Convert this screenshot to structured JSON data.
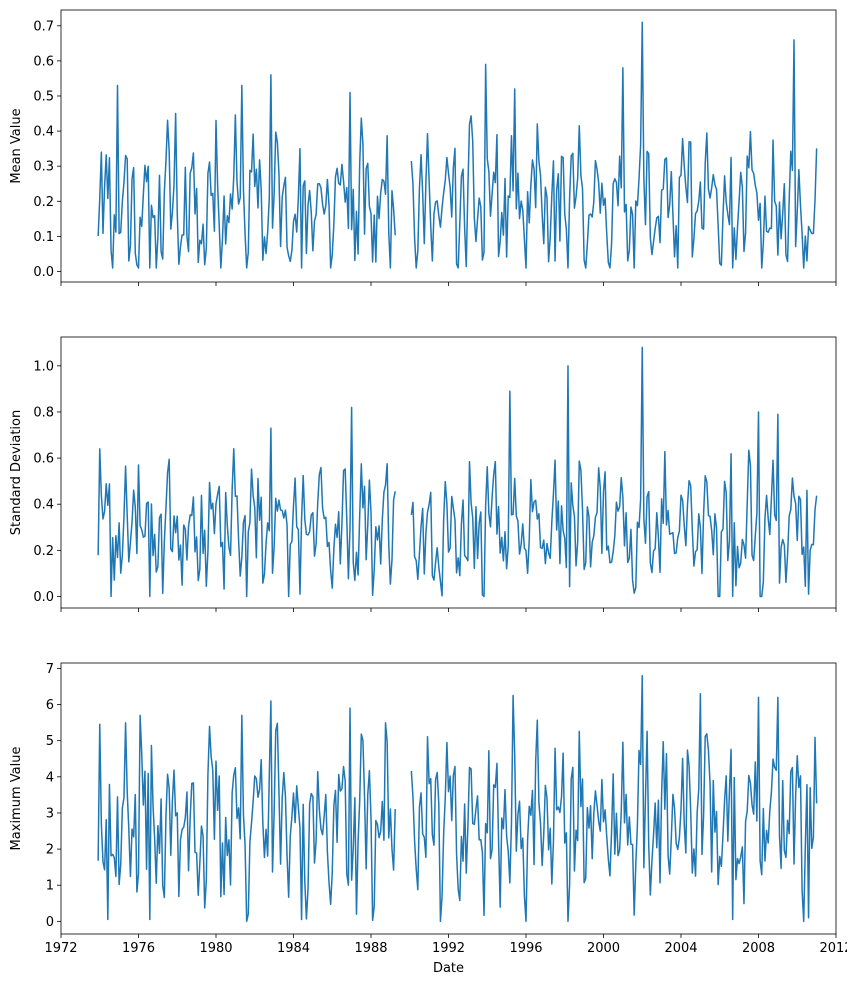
{
  "chart_data": [
    {
      "type": "line",
      "ylabel": "Mean Value",
      "xlabel": "",
      "x_start": "1973-12",
      "x_end": "2011-01",
      "xlim": [
        1972,
        2012
      ],
      "ylim": [
        -0.03,
        0.745
      ],
      "yticks": [
        0.0,
        0.1,
        0.2,
        0.3,
        0.4,
        0.5,
        0.6,
        0.7
      ],
      "xticks": [
        1972,
        1976,
        1980,
        1984,
        1988,
        1992,
        1996,
        2000,
        2004,
        2008,
        2012
      ],
      "show_xtick_labels": false,
      "grid": false,
      "color": "#1f77b4",
      "gap_range": [
        1989.3,
        1990.05
      ],
      "base": 0.19,
      "amplitude": 0.15,
      "noise": 0.12,
      "min": 0.01,
      "seed": 11,
      "peaks": [
        {
          "x": 1974.1,
          "y": 0.34
        },
        {
          "x": 1974.9,
          "y": 0.53
        },
        {
          "x": 1975.5,
          "y": 0.03
        },
        {
          "x": 1976.6,
          "y": 0.01
        },
        {
          "x": 1977.9,
          "y": 0.45
        },
        {
          "x": 1980.0,
          "y": 0.43
        },
        {
          "x": 1981.3,
          "y": 0.53
        },
        {
          "x": 1982.8,
          "y": 0.56
        },
        {
          "x": 1984.4,
          "y": 0.01
        },
        {
          "x": 1986.9,
          "y": 0.51
        },
        {
          "x": 1993.9,
          "y": 0.59
        },
        {
          "x": 1995.4,
          "y": 0.52
        },
        {
          "x": 1996.0,
          "y": 0.01
        },
        {
          "x": 1997.5,
          "y": 0.03
        },
        {
          "x": 2001.0,
          "y": 0.58
        },
        {
          "x": 2002.0,
          "y": 0.71
        },
        {
          "x": 2006.7,
          "y": 0.01
        },
        {
          "x": 2009.8,
          "y": 0.66
        },
        {
          "x": 2010.5,
          "y": 0.03
        }
      ]
    },
    {
      "type": "line",
      "ylabel": "Standard Deviation",
      "xlabel": "",
      "x_start": "1973-12",
      "x_end": "2011-01",
      "xlim": [
        1972,
        2012
      ],
      "ylim": [
        -0.05,
        1.125
      ],
      "yticks": [
        0.0,
        0.2,
        0.4,
        0.6,
        0.8,
        1.0
      ],
      "xticks": [
        1972,
        1976,
        1980,
        1984,
        1988,
        1992,
        1996,
        2000,
        2004,
        2008,
        2012
      ],
      "show_xtick_labels": false,
      "grid": false,
      "color": "#1f77b4",
      "gap_range": [
        1989.3,
        1990.05
      ],
      "base": 0.3,
      "amplitude": 0.22,
      "noise": 0.16,
      "min": 0.0,
      "seed": 23,
      "peaks": [
        {
          "x": 1974.0,
          "y": 0.64
        },
        {
          "x": 1974.6,
          "y": 0.0
        },
        {
          "x": 1976.0,
          "y": 0.57
        },
        {
          "x": 1976.6,
          "y": 0.0
        },
        {
          "x": 1982.8,
          "y": 0.73
        },
        {
          "x": 1984.3,
          "y": 0.01
        },
        {
          "x": 1987.0,
          "y": 0.82
        },
        {
          "x": 1990.0,
          "y": 0.0
        },
        {
          "x": 1995.2,
          "y": 0.89
        },
        {
          "x": 1998.2,
          "y": 1.0
        },
        {
          "x": 2002.0,
          "y": 1.08
        },
        {
          "x": 2006.7,
          "y": 0.0
        },
        {
          "x": 2008.0,
          "y": 0.8
        },
        {
          "x": 2009.0,
          "y": 0.79
        },
        {
          "x": 2010.6,
          "y": 0.01
        }
      ]
    },
    {
      "type": "line",
      "ylabel": "Maximum Value",
      "xlabel": "Date",
      "x_start": "1973-12",
      "x_end": "2011-01",
      "xlim": [
        1972,
        2012
      ],
      "ylim": [
        -0.35,
        7.15
      ],
      "yticks": [
        0,
        1,
        2,
        3,
        4,
        5,
        6,
        7
      ],
      "xticks": [
        1972,
        1976,
        1980,
        1984,
        1988,
        1992,
        1996,
        2000,
        2004,
        2008,
        2012
      ],
      "show_xtick_labels": true,
      "grid": false,
      "color": "#1f77b4",
      "gap_range": [
        1989.3,
        1990.05
      ],
      "base": 2.7,
      "amplitude": 1.8,
      "noise": 1.4,
      "min": 0.0,
      "seed": 37,
      "peaks": [
        {
          "x": 1974.0,
          "y": 5.45
        },
        {
          "x": 1974.4,
          "y": 0.05
        },
        {
          "x": 1976.1,
          "y": 5.7
        },
        {
          "x": 1976.6,
          "y": 0.05
        },
        {
          "x": 1981.3,
          "y": 5.7
        },
        {
          "x": 1982.8,
          "y": 6.1
        },
        {
          "x": 1984.4,
          "y": 0.05
        },
        {
          "x": 1986.9,
          "y": 5.9
        },
        {
          "x": 1990.0,
          "y": 0.05
        },
        {
          "x": 1995.3,
          "y": 6.25
        },
        {
          "x": 2002.0,
          "y": 6.8
        },
        {
          "x": 2005.0,
          "y": 6.3
        },
        {
          "x": 2006.7,
          "y": 0.05
        },
        {
          "x": 2008.0,
          "y": 6.2
        },
        {
          "x": 2009.0,
          "y": 6.2
        },
        {
          "x": 2010.6,
          "y": 0.1
        }
      ]
    }
  ]
}
